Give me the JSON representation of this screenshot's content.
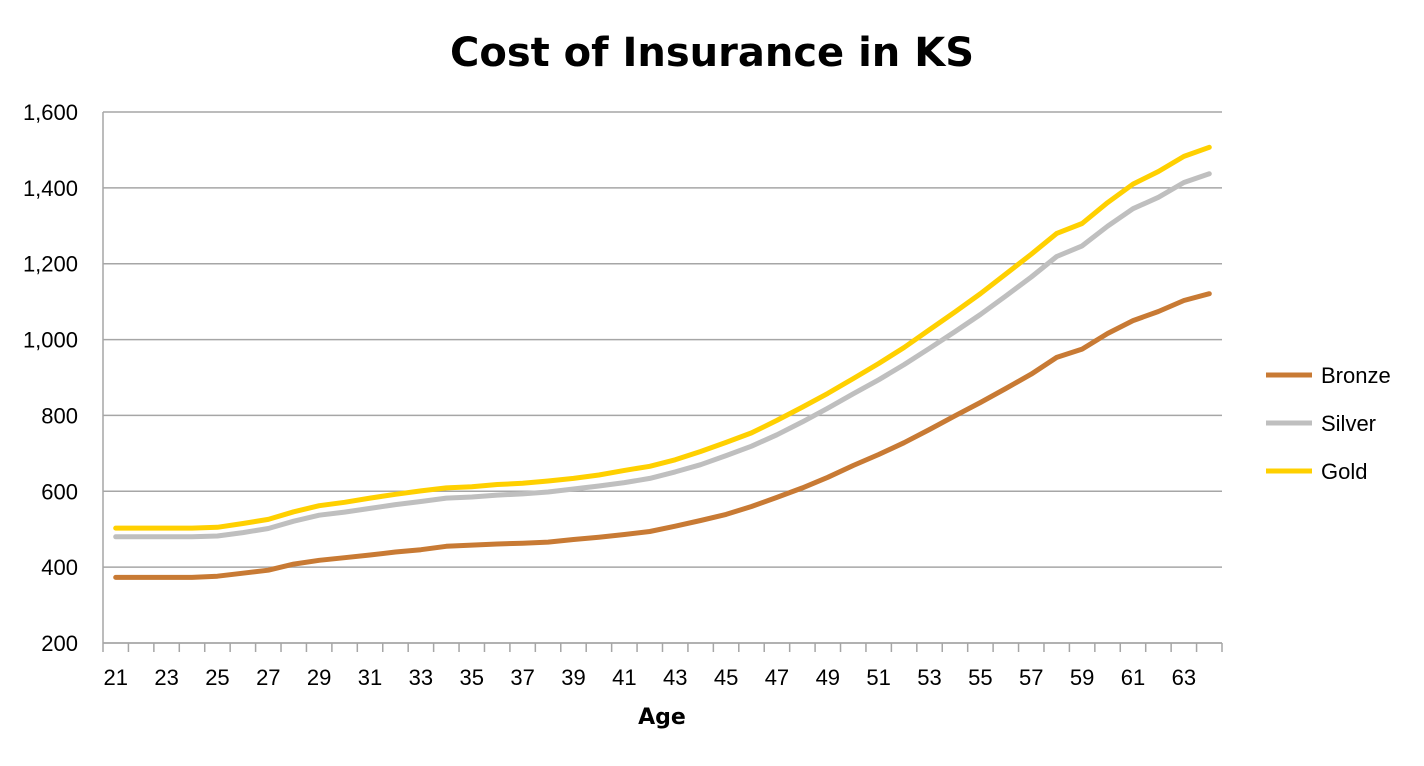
{
  "chart_data": {
    "type": "line",
    "title": "Cost of Insurance in KS",
    "xlabel": "Age",
    "ylabel": "",
    "ylim": [
      200,
      1600
    ],
    "y_ticks": [
      200,
      400,
      600,
      800,
      1000,
      1200,
      1400,
      1600
    ],
    "y_tick_labels": [
      "200",
      "400",
      "600",
      "800",
      "1,000",
      "1,200",
      "1,400",
      "1,600"
    ],
    "x": [
      21,
      22,
      23,
      24,
      25,
      26,
      27,
      28,
      29,
      30,
      31,
      32,
      33,
      34,
      35,
      36,
      37,
      38,
      39,
      40,
      41,
      42,
      43,
      44,
      45,
      46,
      47,
      48,
      49,
      50,
      51,
      52,
      53,
      54,
      55,
      56,
      57,
      58,
      59,
      60,
      61,
      62,
      63,
      64
    ],
    "x_tick_labels": [
      "21",
      "23",
      "25",
      "27",
      "29",
      "31",
      "33",
      "35",
      "37",
      "39",
      "41",
      "43",
      "45",
      "47",
      "49",
      "51",
      "53",
      "55",
      "57",
      "59",
      "61",
      "63"
    ],
    "grid": true,
    "legend_position": "right",
    "series": [
      {
        "name": "Bronze",
        "color": "#C87A34",
        "values": [
          373,
          373,
          373,
          373,
          376,
          384,
          392,
          408,
          418,
          425,
          432,
          440,
          446,
          455,
          458,
          461,
          463,
          466,
          473,
          479,
          486,
          494,
          508,
          523,
          539,
          560,
          584,
          609,
          637,
          668,
          697,
          728,
          763,
          799,
          834,
          871,
          909,
          953,
          975,
          1016,
          1050,
          1074,
          1103,
          1121
        ]
      },
      {
        "name": "Silver",
        "color": "#BFBFBF",
        "values": [
          480,
          480,
          480,
          480,
          482,
          491,
          502,
          521,
          537,
          545,
          555,
          565,
          573,
          582,
          585,
          590,
          593,
          598,
          606,
          614,
          623,
          634,
          651,
          670,
          694,
          719,
          749,
          783,
          819,
          857,
          894,
          934,
          977,
          1021,
          1066,
          1115,
          1165,
          1219,
          1247,
          1299,
          1345,
          1375,
          1414,
          1437
        ]
      },
      {
        "name": "Gold",
        "color": "#FFD000",
        "values": [
          503,
          503,
          503,
          503,
          505,
          515,
          526,
          546,
          562,
          571,
          582,
          592,
          601,
          609,
          612,
          618,
          621,
          627,
          634,
          643,
          655,
          666,
          683,
          705,
          729,
          754,
          787,
          822,
          858,
          897,
          937,
          979,
          1026,
          1073,
          1121,
          1173,
          1225,
          1280,
          1306,
          1361,
          1410,
          1443,
          1483,
          1507
        ]
      }
    ]
  }
}
